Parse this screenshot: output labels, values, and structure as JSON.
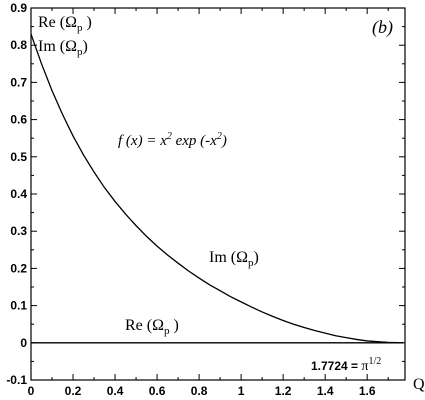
{
  "chart_data": {
    "type": "line",
    "panel_label": "(b)",
    "xlabel": "Q",
    "ylabel": "",
    "xlim": [
      0,
      1.78
    ],
    "ylim": [
      -0.1,
      0.9
    ],
    "x_ticks": [
      0,
      0.2,
      0.4,
      0.6,
      0.8,
      1,
      1.2,
      1.4,
      1.6
    ],
    "x_tick_labels": [
      "0",
      "0.2",
      "0.4",
      "0.6",
      "0.8",
      "1",
      "1.2",
      "1.4",
      "1.6"
    ],
    "y_ticks": [
      -0.1,
      0,
      0.1,
      0.2,
      0.3,
      0.4,
      0.5,
      0.6,
      0.7,
      0.8,
      0.9
    ],
    "y_tick_labels": [
      "-0.1",
      "0",
      "0.1",
      "0.2",
      "0.3",
      "0.4",
      "0.5",
      "0.6",
      "0.7",
      "0.8",
      "0.9"
    ],
    "grid": false,
    "legend_entries": [
      {
        "name": "Re (Ω",
        "sub": "p",
        "close": " )"
      },
      {
        "name": "Im (Ω",
        "sub": "p",
        "close": ")"
      }
    ],
    "formula": {
      "lhs": "f  (x)  = x",
      "sup1": "2",
      "mid": " exp (-x",
      "sup2": "2",
      "end": ")"
    },
    "annotation_im": {
      "name": "Im (Ω",
      "sub": "p",
      "close": ")"
    },
    "annotation_re": {
      "name": "Re (Ω",
      "sub": "p",
      "close": " )"
    },
    "endpoint_label": {
      "value": "1.7724 = ",
      "pi": "π",
      "exp": "1/2"
    },
    "series": [
      {
        "name": "Im (Ωp)",
        "x": [
          0,
          0.05,
          0.1,
          0.15,
          0.2,
          0.25,
          0.3,
          0.35,
          0.4,
          0.45,
          0.5,
          0.55,
          0.6,
          0.65,
          0.7,
          0.75,
          0.8,
          0.85,
          0.9,
          0.95,
          1.0,
          1.05,
          1.1,
          1.15,
          1.2,
          1.25,
          1.3,
          1.35,
          1.4,
          1.45,
          1.5,
          1.55,
          1.6,
          1.65,
          1.7,
          1.7724
        ],
        "y": [
          0.83,
          0.75,
          0.678,
          0.614,
          0.556,
          0.505,
          0.459,
          0.417,
          0.38,
          0.346,
          0.315,
          0.286,
          0.26,
          0.236,
          0.214,
          0.193,
          0.174,
          0.156,
          0.14,
          0.124,
          0.11,
          0.096,
          0.083,
          0.071,
          0.06,
          0.05,
          0.041,
          0.033,
          0.026,
          0.019,
          0.014,
          0.009,
          0.005,
          0.003,
          0.001,
          0.0
        ]
      },
      {
        "name": "Re (Ωp)",
        "x": [
          0,
          1.7724
        ],
        "y": [
          0,
          0
        ]
      }
    ]
  }
}
